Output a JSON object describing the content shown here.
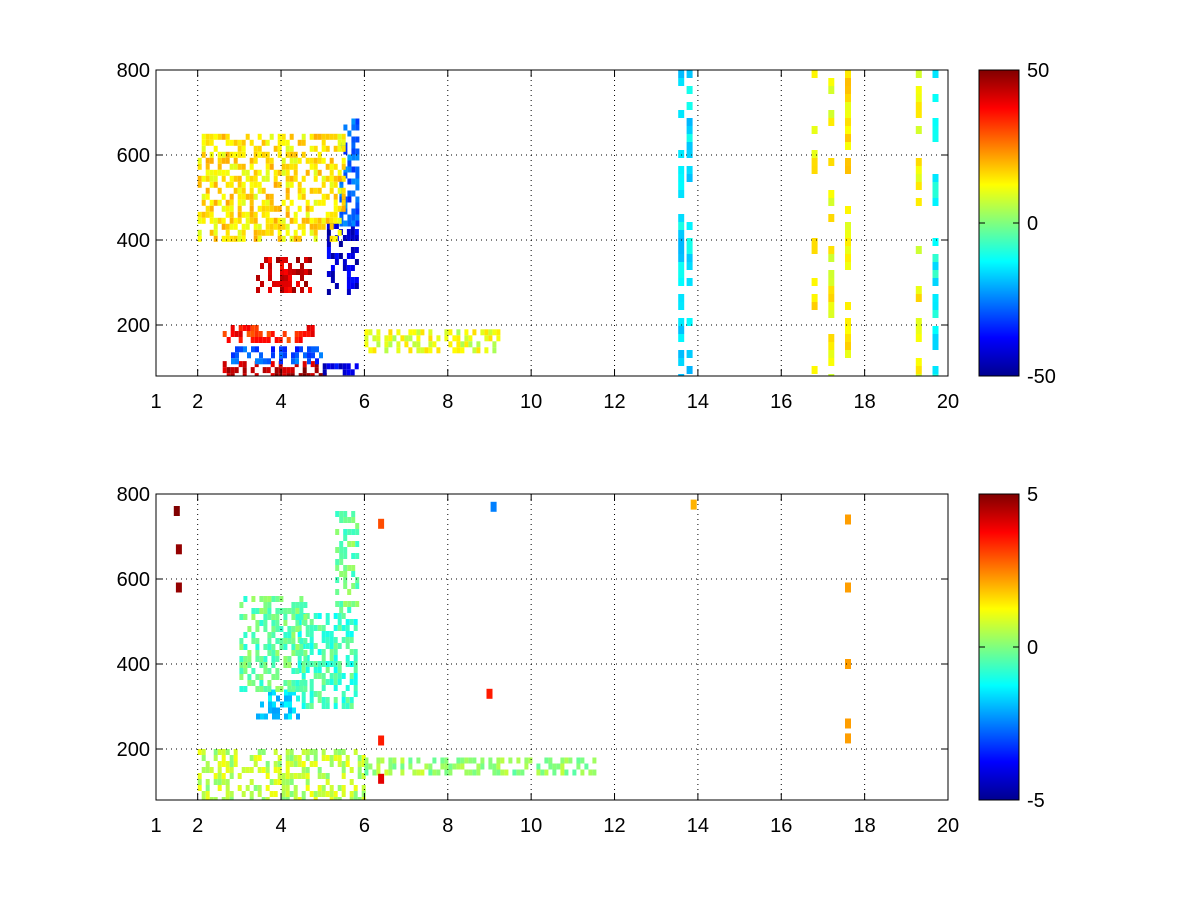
{
  "chart_data": [
    {
      "type": "heatmap",
      "title": "",
      "xlabel": "",
      "ylabel": "",
      "xlim": [
        1,
        20
      ],
      "ylim": [
        80,
        800
      ],
      "x_ticks": [
        "1",
        "2",
        "4",
        "6",
        "8",
        "10",
        "12",
        "14",
        "16",
        "18",
        "20"
      ],
      "x_tick_values": [
        1,
        2,
        4,
        6,
        8,
        10,
        12,
        14,
        16,
        18,
        20
      ],
      "y_ticks": [
        "200",
        "400",
        "600",
        "800"
      ],
      "y_tick_values": [
        200,
        400,
        600,
        800
      ],
      "grid": true,
      "colormap": "jet",
      "colorbar": {
        "min": -50,
        "max": 50,
        "ticks": [
          "50",
          "0",
          "-50"
        ],
        "tick_values": [
          50,
          0,
          -50
        ]
      },
      "features": [
        {
          "x_range": [
            2.6,
            5.0
          ],
          "y_range": [
            85,
            115
          ],
          "value": 45
        },
        {
          "x_range": [
            5.0,
            5.9
          ],
          "y_range": [
            85,
            110
          ],
          "value": -40
        },
        {
          "x_range": [
            2.6,
            4.8
          ],
          "y_range": [
            160,
            200
          ],
          "value": 35
        },
        {
          "x_range": [
            2.8,
            5.0
          ],
          "y_range": [
            120,
            150
          ],
          "value": -30
        },
        {
          "x_range": [
            3.4,
            4.7
          ],
          "y_range": [
            280,
            360
          ],
          "value": 42
        },
        {
          "x_range": [
            5.1,
            5.8
          ],
          "y_range": [
            280,
            440
          ],
          "value": -42
        },
        {
          "x_range": [
            5.4,
            5.8
          ],
          "y_range": [
            440,
            700
          ],
          "value": -28
        },
        {
          "x_range": [
            2.0,
            5.5
          ],
          "y_range": [
            400,
            650
          ],
          "value": 15
        },
        {
          "x_range": [
            6.0,
            9.2
          ],
          "y_range": [
            140,
            190
          ],
          "value": 10
        }
      ],
      "column_stripes": [
        {
          "x": 13.8,
          "value": -15
        },
        {
          "x": 13.6,
          "value": -15
        },
        {
          "x": 16.8,
          "value": 15
        },
        {
          "x": 17.2,
          "value": 12
        },
        {
          "x": 17.6,
          "value": 14
        },
        {
          "x": 19.3,
          "value": 12
        },
        {
          "x": 19.7,
          "value": -12
        }
      ]
    },
    {
      "type": "heatmap",
      "title": "",
      "xlabel": "",
      "ylabel": "",
      "xlim": [
        1,
        20
      ],
      "ylim": [
        80,
        800
      ],
      "x_ticks": [
        "1",
        "2",
        "4",
        "6",
        "8",
        "10",
        "12",
        "14",
        "16",
        "18",
        "20"
      ],
      "x_tick_values": [
        1,
        2,
        4,
        6,
        8,
        10,
        12,
        14,
        16,
        18,
        20
      ],
      "y_ticks": [
        "200",
        "400",
        "600",
        "800"
      ],
      "y_tick_values": [
        200,
        400,
        600,
        800
      ],
      "grid": true,
      "colormap": "jet",
      "colorbar": {
        "min": -5,
        "max": 5,
        "ticks": [
          "5",
          "0",
          "-5"
        ],
        "tick_values": [
          5,
          0,
          -5
        ]
      },
      "features": [
        {
          "x_range": [
            2.0,
            6.0
          ],
          "y_range": [
            85,
            200
          ],
          "value": 0.6
        },
        {
          "x_range": [
            3.4,
            4.4
          ],
          "y_range": [
            280,
            340
          ],
          "value": -1.6
        },
        {
          "x_range": [
            4.4,
            5.8
          ],
          "y_range": [
            300,
            520
          ],
          "value": -0.6
        },
        {
          "x_range": [
            5.3,
            5.8
          ],
          "y_range": [
            520,
            760
          ],
          "value": -0.2
        },
        {
          "x_range": [
            3.0,
            4.6
          ],
          "y_range": [
            340,
            560
          ],
          "value": -0.3
        },
        {
          "x_range": [
            6.0,
            11.5
          ],
          "y_range": [
            150,
            180
          ],
          "value": 0.2
        }
      ],
      "points": [
        {
          "x": 1.5,
          "y": 760,
          "value": 5
        },
        {
          "x": 1.55,
          "y": 670,
          "value": 4.8
        },
        {
          "x": 1.55,
          "y": 580,
          "value": 4.8
        },
        {
          "x": 6.4,
          "y": 730,
          "value": 3
        },
        {
          "x": 6.4,
          "y": 220,
          "value": 3.5
        },
        {
          "x": 6.4,
          "y": 130,
          "value": 4
        },
        {
          "x": 9.1,
          "y": 770,
          "value": -2.5
        },
        {
          "x": 9.0,
          "y": 330,
          "value": 3.5
        },
        {
          "x": 13.9,
          "y": 775,
          "value": 2
        },
        {
          "x": 17.6,
          "y": 740,
          "value": 2.2
        },
        {
          "x": 17.6,
          "y": 580,
          "value": 2.2
        },
        {
          "x": 17.6,
          "y": 400,
          "value": 2.2
        },
        {
          "x": 17.6,
          "y": 260,
          "value": 2.2
        },
        {
          "x": 17.6,
          "y": 225,
          "value": 2.2
        }
      ]
    }
  ]
}
